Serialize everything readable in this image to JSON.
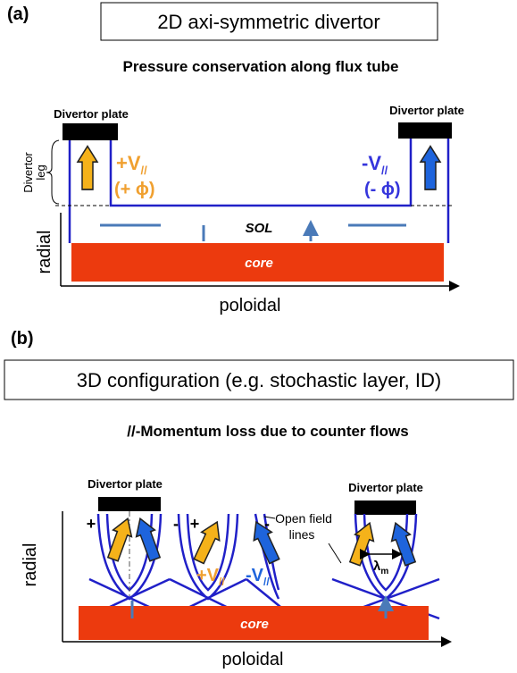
{
  "panel_a": {
    "label": "(a)",
    "title": "2D axi-symmetric divertor",
    "subtitle": "Pressure conservation along flux tube",
    "left_plate": "Divertor plate",
    "right_plate": "Divertor plate",
    "leg_label": [
      "Divertor",
      "leg"
    ],
    "left_flow": {
      "main": "+V",
      "sub": "//",
      "potential": "(+ ϕ)"
    },
    "right_flow": {
      "main": "-V",
      "sub": "//",
      "potential": "(- ϕ)"
    },
    "sol": "SOL",
    "core": "core",
    "y_axis": "radial",
    "x_axis": "poloidal"
  },
  "panel_b": {
    "label": "(b)",
    "title": "3D configuration (e.g. stochastic layer, ID)",
    "subtitle": "//-Momentum loss due to counter flows",
    "left_plate": "Divertor plate",
    "right_plate": "Divertor plate",
    "signs": [
      "+",
      "-",
      "+",
      "-"
    ],
    "field_lines": [
      "Open field",
      "lines"
    ],
    "flow_plus": {
      "main": "+V",
      "sub": "//"
    },
    "flow_minus": {
      "main": "-V",
      "sub": "//"
    },
    "width": {
      "main": "λ",
      "sub": "m"
    },
    "core": "core",
    "y_axis": "radial",
    "x_axis": "poloidal"
  }
}
